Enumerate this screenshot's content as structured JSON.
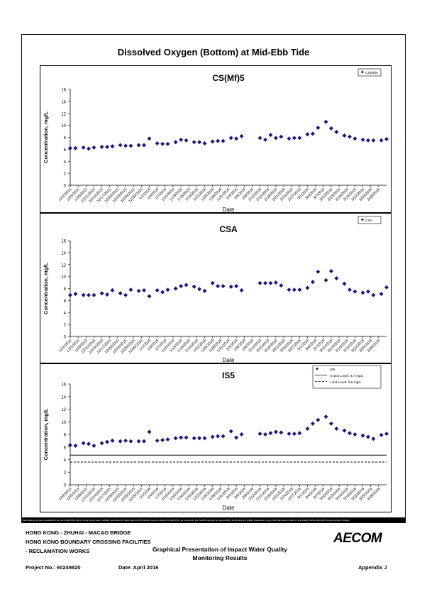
{
  "page_title": "Dissolved Oxygen (Bottom) at Mid-Ebb Tide",
  "disclaimer": "This Drawing has been prepared for the use of AECOM's client. It may not be used, modified, reproduced or relied upon by third parties, except as agreed by AECOM or as required by law. AECOM accepts no responsibility, and denies any liability whatsoever, to any party that uses or relies on this drawing without AECOM's express written consent.",
  "footer": {
    "line1": "HONG KONG - ZHUHAI - MACAO BRIDGE",
    "line2": "HONG KONG BOUNDARY CROSSING FACILITIES",
    "line3": "- RECLAMATION WORKS",
    "title_line1": "Graphical Presentation of Impact Water Quality",
    "title_line2": "Monitoring Results",
    "project": "Project No.: 60249820",
    "date": "Date: April 2016",
    "appendix": "Appendix J",
    "logo": "AECOM"
  },
  "colors": {
    "marker": "#1a1a7a",
    "line": "#000000"
  },
  "chart_data": [
    {
      "type": "scatter",
      "title": "CS(Mf)5",
      "xlabel": "Date",
      "ylabel": "Concentration, mg/L",
      "ylim": [
        0,
        16
      ],
      "yticks": [
        "0",
        "2",
        "4",
        "6",
        "8",
        "10",
        "12",
        "14",
        "16"
      ],
      "grid": false,
      "legend_position": "top-right",
      "legend": [
        "CS(Mf)5"
      ],
      "xtick_labels": [
        "12/2/2015",
        "12/5/2015",
        "12/8/2015",
        "12/11/2015",
        "12/14/2015",
        "12/17/2015",
        "12/20/2015",
        "12/23/2015",
        "12/26/2015",
        "12/29/2015",
        "1/1/2016",
        "1/4/2016",
        "1/7/2016",
        "1/10/2016",
        "1/13/2016",
        "1/16/2016",
        "1/19/2016",
        "1/22/2016",
        "1/25/2016",
        "1/28/2016",
        "1/31/2016",
        "2/3/2016",
        "2/6/2016",
        "2/9/2016",
        "2/12/2016",
        "2/15/2016",
        "2/18/2016",
        "2/21/2016",
        "2/24/2016",
        "2/27/2016",
        "3/1/2016",
        "3/4/2016",
        "3/7/2016",
        "3/10/2016",
        "3/13/2016",
        "3/16/2016",
        "3/19/2016",
        "3/22/2016",
        "3/25/2016",
        "3/28/2016"
      ],
      "series": [
        {
          "name": "CS(Mf)5",
          "points": [
            [
              "12/2/2015",
              6.2
            ],
            [
              "12/4/2015",
              6.2
            ],
            [
              "12/7/2015",
              6.3
            ],
            [
              "12/9/2015",
              6.1
            ],
            [
              "12/11/2015",
              6.3
            ],
            [
              "12/14/2015",
              6.4
            ],
            [
              "12/16/2015",
              6.4
            ],
            [
              "12/18/2015",
              6.5
            ],
            [
              "12/21/2015",
              6.7
            ],
            [
              "12/23/2015",
              6.6
            ],
            [
              "12/25/2015",
              6.6
            ],
            [
              "12/28/2015",
              6.7
            ],
            [
              "12/30/2015",
              6.7
            ],
            [
              "1/1/2016",
              7.8
            ],
            [
              "1/4/2016",
              7.0
            ],
            [
              "1/6/2016",
              6.9
            ],
            [
              "1/8/2016",
              6.9
            ],
            [
              "1/11/2016",
              7.2
            ],
            [
              "1/13/2016",
              7.6
            ],
            [
              "1/15/2016",
              7.5
            ],
            [
              "1/18/2016",
              7.2
            ],
            [
              "1/20/2016",
              7.2
            ],
            [
              "1/22/2016",
              7.0
            ],
            [
              "1/25/2016",
              7.3
            ],
            [
              "1/27/2016",
              7.4
            ],
            [
              "1/29/2016",
              7.4
            ],
            [
              "2/1/2016",
              7.9
            ],
            [
              "2/3/2016",
              7.8
            ],
            [
              "2/5/2016",
              8.2
            ],
            [
              "2/12/2016",
              7.9
            ],
            [
              "2/14/2016",
              7.6
            ],
            [
              "2/16/2016",
              8.4
            ],
            [
              "2/18/2016",
              7.9
            ],
            [
              "2/20/2016",
              8.1
            ],
            [
              "2/23/2016",
              7.8
            ],
            [
              "2/25/2016",
              7.9
            ],
            [
              "2/27/2016",
              7.9
            ],
            [
              "3/1/2016",
              8.5
            ],
            [
              "3/3/2016",
              8.6
            ],
            [
              "3/5/2016",
              9.6
            ],
            [
              "3/8/2016",
              10.6
            ],
            [
              "3/10/2016",
              9.5
            ],
            [
              "3/12/2016",
              8.9
            ],
            [
              "3/15/2016",
              8.3
            ],
            [
              "3/17/2016",
              8.1
            ],
            [
              "3/19/2016",
              7.8
            ],
            [
              "3/22/2016",
              7.6
            ],
            [
              "3/24/2016",
              7.5
            ],
            [
              "3/26/2016",
              7.5
            ],
            [
              "3/29/2016",
              7.5
            ],
            [
              "3/31/2016",
              7.7
            ]
          ]
        }
      ]
    },
    {
      "type": "scatter",
      "title": "CSA",
      "xlabel": "Date",
      "ylabel": "Concentration, mg/L",
      "ylim": [
        0,
        16
      ],
      "yticks": [
        "0",
        "2",
        "4",
        "6",
        "8",
        "10",
        "12",
        "14",
        "16"
      ],
      "grid": false,
      "legend_position": "top-right",
      "legend": [
        "CSA"
      ],
      "xtick_labels": [
        "12/2/2015",
        "12/5/2015",
        "12/8/2015",
        "12/11/2015",
        "12/14/2015",
        "12/17/2015",
        "12/20/2015",
        "12/23/2015",
        "12/26/2015",
        "12/29/2015",
        "1/1/2016",
        "1/4/2016",
        "1/7/2016",
        "1/10/2016",
        "1/13/2016",
        "1/16/2016",
        "1/19/2016",
        "1/22/2016",
        "1/25/2016",
        "1/28/2016",
        "1/31/2016",
        "2/3/2016",
        "2/6/2016",
        "2/9/2016",
        "2/12/2016",
        "2/15/2016",
        "2/18/2016",
        "2/21/2016",
        "2/24/2016",
        "2/27/2016",
        "3/1/2016",
        "3/4/2016",
        "3/7/2016",
        "3/10/2016",
        "3/13/2016",
        "3/16/2016",
        "3/19/2016",
        "3/22/2016",
        "3/25/2016",
        "3/28/2016"
      ],
      "series": [
        {
          "name": "CSA",
          "points": [
            [
              "12/2/2015",
              6.9
            ],
            [
              "12/4/2015",
              7.1
            ],
            [
              "12/7/2015",
              6.9
            ],
            [
              "12/9/2015",
              6.9
            ],
            [
              "12/11/2015",
              6.9
            ],
            [
              "12/14/2015",
              7.2
            ],
            [
              "12/16/2015",
              7.0
            ],
            [
              "12/18/2015",
              7.7
            ],
            [
              "12/21/2015",
              7.2
            ],
            [
              "12/23/2015",
              6.9
            ],
            [
              "12/25/2015",
              7.8
            ],
            [
              "12/28/2015",
              7.6
            ],
            [
              "12/30/2015",
              7.7
            ],
            [
              "1/1/2016",
              6.7
            ],
            [
              "1/4/2016",
              7.7
            ],
            [
              "1/6/2016",
              7.4
            ],
            [
              "1/8/2016",
              7.8
            ],
            [
              "1/11/2016",
              8.0
            ],
            [
              "1/13/2016",
              8.4
            ],
            [
              "1/15/2016",
              8.6
            ],
            [
              "1/18/2016",
              8.3
            ],
            [
              "1/20/2016",
              7.9
            ],
            [
              "1/22/2016",
              7.6
            ],
            [
              "1/25/2016",
              8.9
            ],
            [
              "1/27/2016",
              8.4
            ],
            [
              "1/29/2016",
              8.4
            ],
            [
              "2/1/2016",
              8.3
            ],
            [
              "2/3/2016",
              8.4
            ],
            [
              "2/5/2016",
              7.7
            ],
            [
              "2/12/2016",
              8.9
            ],
            [
              "2/14/2016",
              8.9
            ],
            [
              "2/16/2016",
              8.9
            ],
            [
              "2/18/2016",
              9.0
            ],
            [
              "2/20/2016",
              8.5
            ],
            [
              "2/23/2016",
              7.8
            ],
            [
              "2/25/2016",
              7.8
            ],
            [
              "2/27/2016",
              7.8
            ],
            [
              "3/1/2016",
              8.1
            ],
            [
              "3/3/2016",
              9.1
            ],
            [
              "3/5/2016",
              10.8
            ],
            [
              "3/8/2016",
              9.4
            ],
            [
              "3/10/2016",
              10.9
            ],
            [
              "3/12/2016",
              9.7
            ],
            [
              "3/15/2016",
              8.8
            ],
            [
              "3/17/2016",
              7.8
            ],
            [
              "3/19/2016",
              7.5
            ],
            [
              "3/22/2016",
              7.3
            ],
            [
              "3/24/2016",
              7.5
            ],
            [
              "3/26/2016",
              6.9
            ],
            [
              "3/29/2016",
              7.1
            ],
            [
              "3/31/2016",
              8.2
            ]
          ]
        }
      ]
    },
    {
      "type": "scatter",
      "title": "IS5",
      "xlabel": "Date",
      "ylabel": "Concentration, mg/L",
      "ylim": [
        0,
        16
      ],
      "yticks": [
        "0",
        "2",
        "4",
        "6",
        "8",
        "10",
        "12",
        "14",
        "16"
      ],
      "grid": false,
      "legend_position": "top-right",
      "legend": [
        "IS5",
        "Action Level: 4.7 mg/L",
        "Limit Level: 3.6 mg/L"
      ],
      "action_level": 4.7,
      "limit_level": 3.6,
      "xtick_labels": [
        "12/2/2015",
        "12/5/2015",
        "12/8/2015",
        "12/11/2015",
        "12/14/2015",
        "12/17/2015",
        "12/20/2015",
        "12/23/2015",
        "12/26/2015",
        "12/29/2015",
        "1/1/2016",
        "1/4/2016",
        "1/7/2016",
        "1/10/2016",
        "1/13/2016",
        "1/16/2016",
        "1/19/2016",
        "1/22/2016",
        "1/25/2016",
        "1/28/2016",
        "1/31/2016",
        "2/3/2016",
        "2/6/2016",
        "2/9/2016",
        "2/12/2016",
        "2/15/2016",
        "2/18/2016",
        "2/21/2016",
        "2/24/2016",
        "2/27/2016",
        "3/1/2016",
        "3/4/2016",
        "3/7/2016",
        "3/10/2016",
        "3/13/2016",
        "3/16/2016",
        "3/19/2016",
        "3/22/2016",
        "3/25/2016",
        "3/28/2016"
      ],
      "series": [
        {
          "name": "IS5",
          "points": [
            [
              "12/2/2015",
              6.3
            ],
            [
              "12/4/2015",
              6.2
            ],
            [
              "12/7/2015",
              6.6
            ],
            [
              "12/9/2015",
              6.5
            ],
            [
              "12/11/2015",
              6.2
            ],
            [
              "12/14/2015",
              6.6
            ],
            [
              "12/16/2015",
              6.8
            ],
            [
              "12/18/2015",
              7.0
            ],
            [
              "12/21/2015",
              6.9
            ],
            [
              "12/23/2015",
              7.0
            ],
            [
              "12/25/2015",
              6.9
            ],
            [
              "12/28/2015",
              6.9
            ],
            [
              "12/30/2015",
              6.9
            ],
            [
              "1/1/2016",
              8.4
            ],
            [
              "1/4/2016",
              7.0
            ],
            [
              "1/6/2016",
              7.1
            ],
            [
              "1/8/2016",
              7.2
            ],
            [
              "1/11/2016",
              7.4
            ],
            [
              "1/13/2016",
              7.5
            ],
            [
              "1/15/2016",
              7.5
            ],
            [
              "1/18/2016",
              7.4
            ],
            [
              "1/20/2016",
              7.4
            ],
            [
              "1/22/2016",
              7.4
            ],
            [
              "1/25/2016",
              7.6
            ],
            [
              "1/27/2016",
              7.7
            ],
            [
              "1/29/2016",
              7.7
            ],
            [
              "2/1/2016",
              8.5
            ],
            [
              "2/3/2016",
              7.5
            ],
            [
              "2/5/2016",
              8.0
            ],
            [
              "2/12/2016",
              8.1
            ],
            [
              "2/14/2016",
              8.0
            ],
            [
              "2/16/2016",
              8.2
            ],
            [
              "2/18/2016",
              8.4
            ],
            [
              "2/20/2016",
              8.3
            ],
            [
              "2/23/2016",
              8.1
            ],
            [
              "2/25/2016",
              8.1
            ],
            [
              "2/27/2016",
              8.2
            ],
            [
              "3/1/2016",
              8.9
            ],
            [
              "3/3/2016",
              9.7
            ],
            [
              "3/5/2016",
              10.3
            ],
            [
              "3/8/2016",
              10.8
            ],
            [
              "3/10/2016",
              9.7
            ],
            [
              "3/12/2016",
              8.9
            ],
            [
              "3/15/2016",
              8.6
            ],
            [
              "3/17/2016",
              8.2
            ],
            [
              "3/19/2016",
              8.0
            ],
            [
              "3/22/2016",
              7.8
            ],
            [
              "3/24/2016",
              7.6
            ],
            [
              "3/26/2016",
              7.3
            ],
            [
              "3/29/2016",
              7.9
            ],
            [
              "3/31/2016",
              8.1
            ]
          ]
        }
      ]
    }
  ]
}
